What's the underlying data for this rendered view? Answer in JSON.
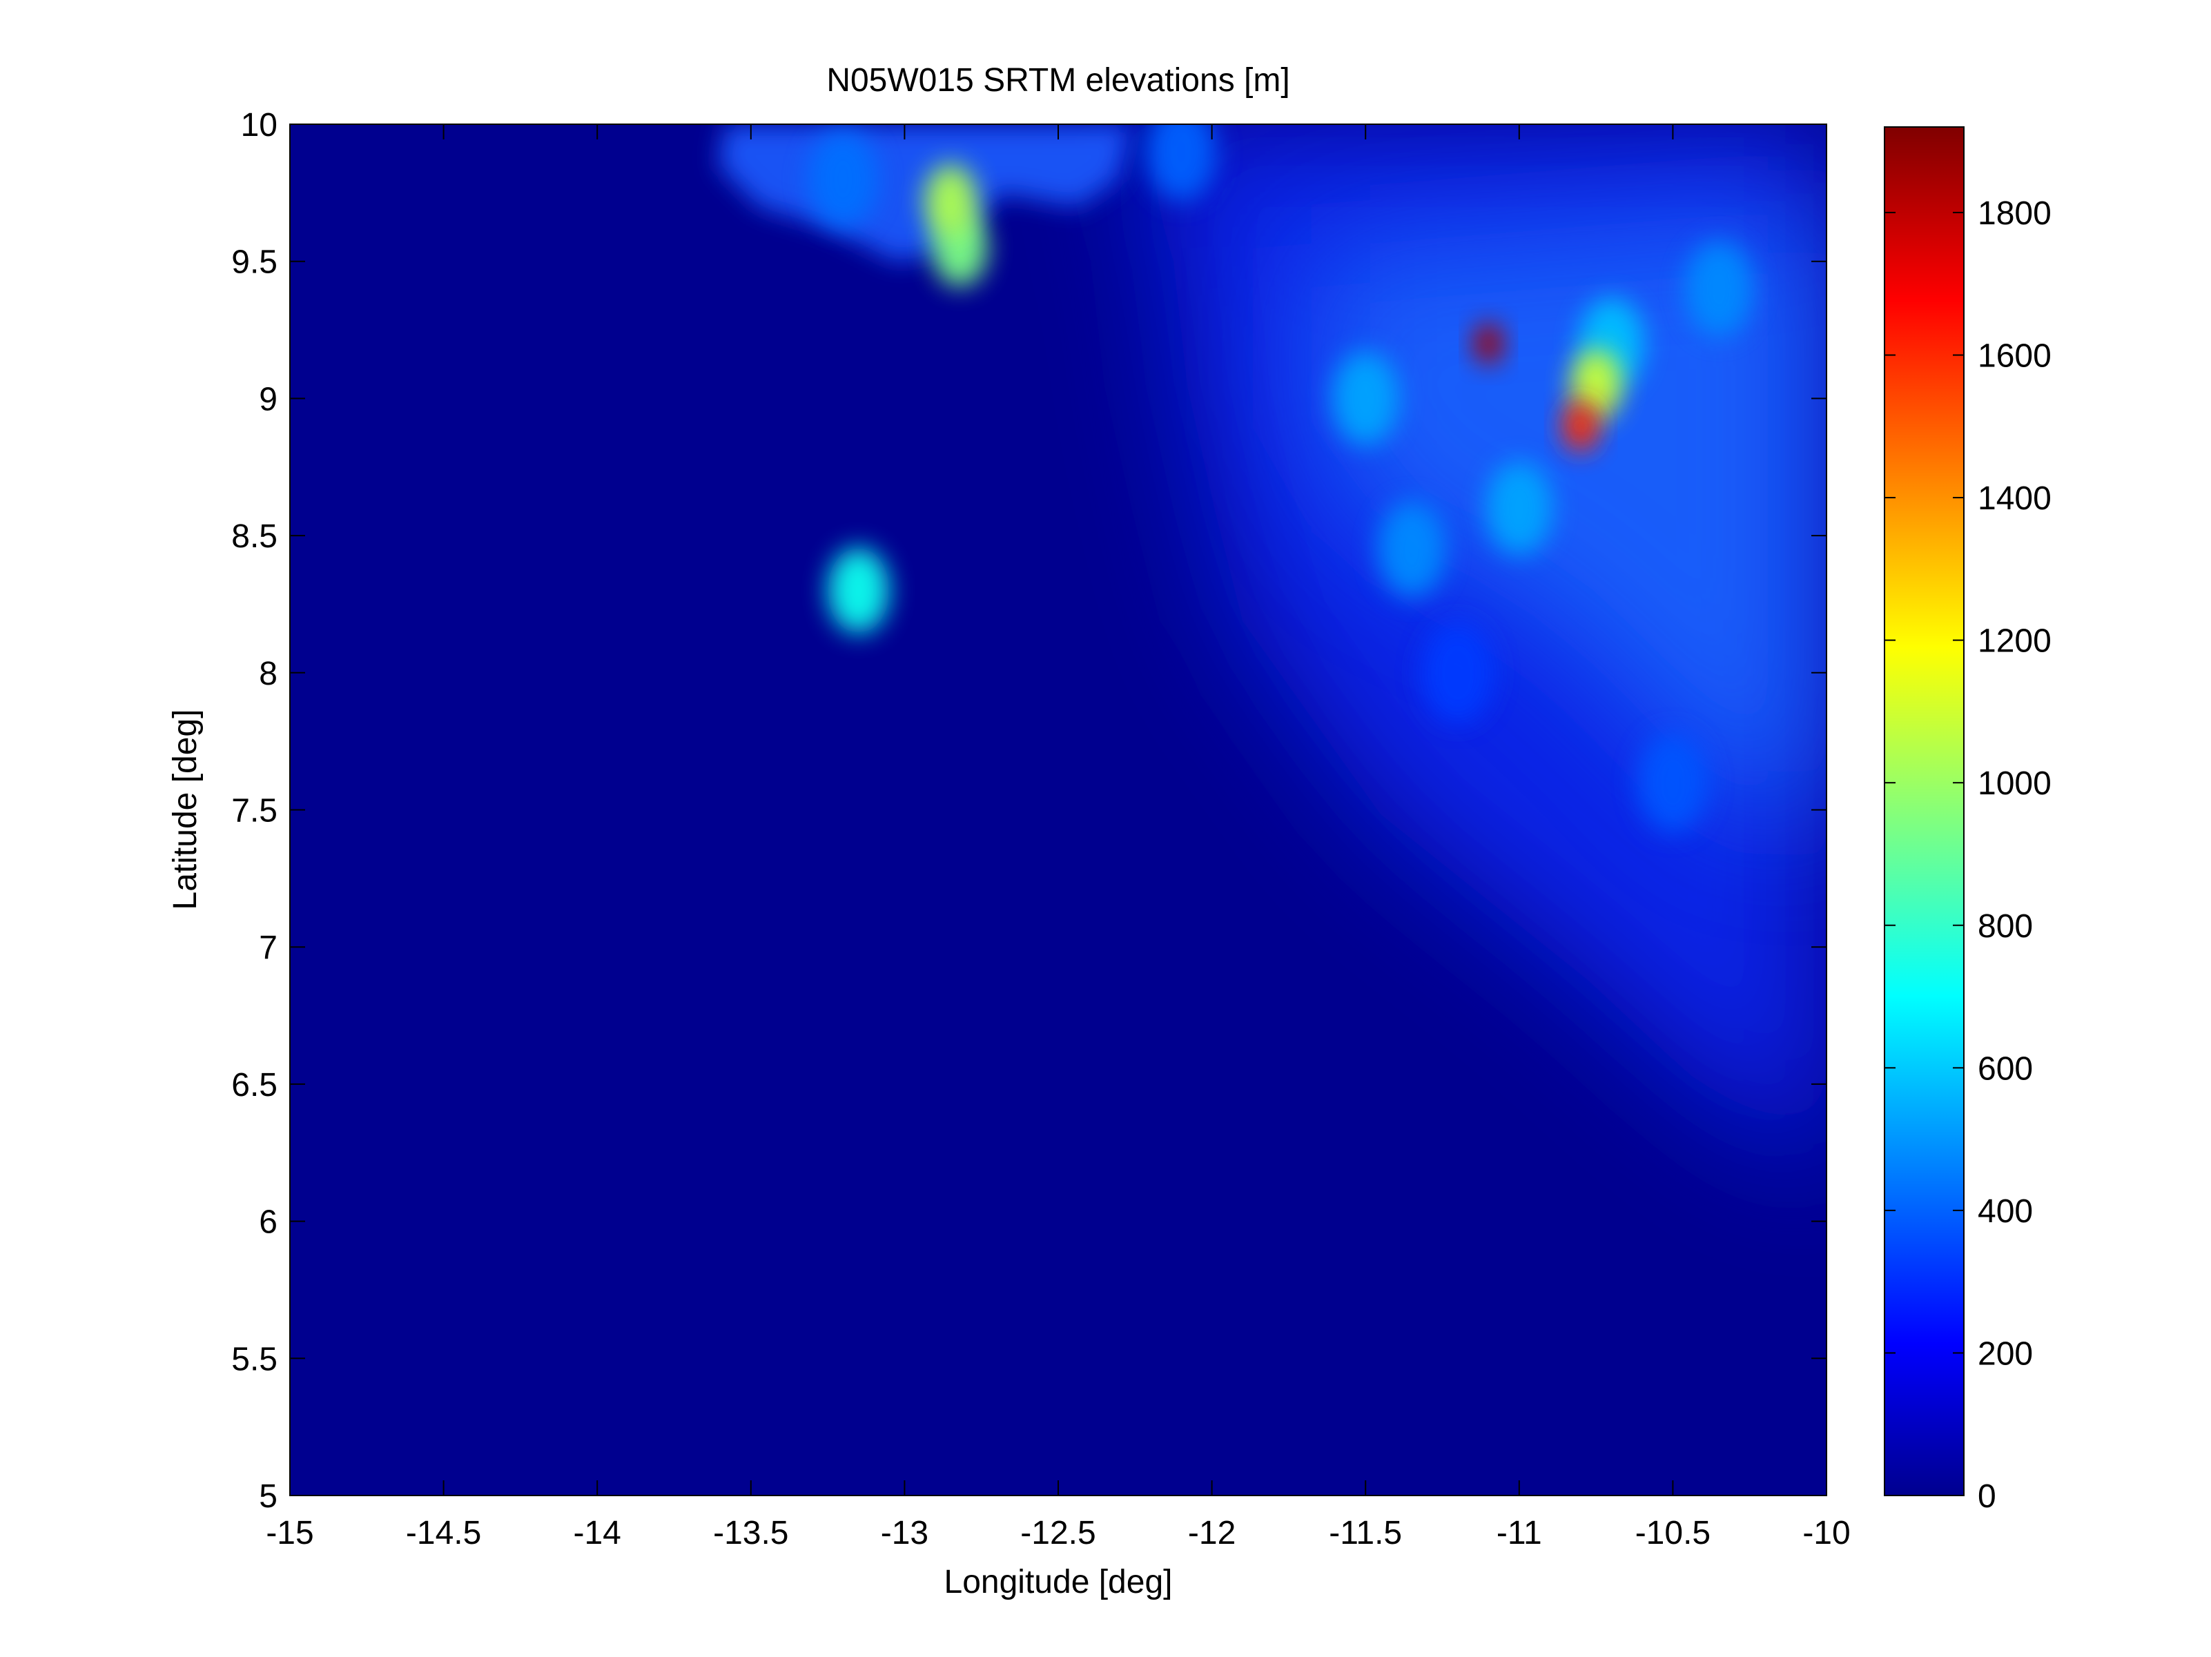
{
  "chart_data": {
    "type": "heatmap",
    "title": "N05W015 SRTM elevations [m]",
    "xlabel": "Longitude [deg]",
    "ylabel": "Latitude [deg]",
    "xlim": [
      -15,
      -10
    ],
    "ylim": [
      5,
      10
    ],
    "x_ticks": [
      -15,
      -14.5,
      -14,
      -13.5,
      -13,
      -12.5,
      -12,
      -11.5,
      -11,
      -10.5,
      -10
    ],
    "y_ticks": [
      5,
      5.5,
      6,
      6.5,
      7,
      7.5,
      8,
      8.5,
      9,
      9.5,
      10
    ],
    "colorbar": {
      "colormap": "jet",
      "range": [
        0,
        1920
      ],
      "ticks": [
        0,
        200,
        400,
        600,
        800,
        1000,
        1200,
        1400,
        1600,
        1800
      ]
    },
    "grid": false,
    "regions": [
      {
        "lon": -11.1,
        "lat": 9.2,
        "value": 1850
      },
      {
        "lon": -10.8,
        "lat": 8.9,
        "value": 1600
      },
      {
        "lon": -10.75,
        "lat": 9.05,
        "value": 1100
      },
      {
        "lon": -12.85,
        "lat": 9.72,
        "value": 1050
      },
      {
        "lon": -12.82,
        "lat": 9.55,
        "value": 950
      },
      {
        "lon": -13.15,
        "lat": 8.3,
        "value": 750
      },
      {
        "lon": -11.5,
        "lat": 9.0,
        "value": 550
      },
      {
        "lon": -10.7,
        "lat": 9.2,
        "value": 600
      },
      {
        "lon": -10.35,
        "lat": 9.4,
        "value": 500
      },
      {
        "lon": -11.35,
        "lat": 8.45,
        "value": 500
      },
      {
        "lon": -11.0,
        "lat": 8.6,
        "value": 550
      },
      {
        "lon": -10.5,
        "lat": 7.6,
        "value": 400
      },
      {
        "lon": -11.2,
        "lat": 8.0,
        "value": 350
      },
      {
        "lon": -12.1,
        "lat": 9.9,
        "value": 420
      },
      {
        "lon": -13.2,
        "lat": 9.8,
        "value": 450
      }
    ]
  }
}
